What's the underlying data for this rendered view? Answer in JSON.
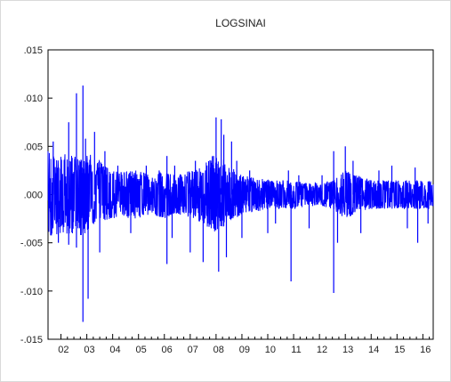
{
  "chart_data": {
    "type": "line",
    "title": "LOGSINAI",
    "xlabel": "",
    "ylabel": "",
    "x_tick_labels": [
      "02",
      "03",
      "04",
      "05",
      "06",
      "07",
      "08",
      "09",
      "10",
      "11",
      "12",
      "13",
      "14",
      "15",
      "16"
    ],
    "y_tick_labels": [
      ".015",
      ".010",
      ".005",
      ".000",
      "-.005",
      "-.010",
      "-.015"
    ],
    "y_ticks": [
      0.015,
      0.01,
      0.005,
      0.0,
      -0.005,
      -0.01,
      -0.015
    ],
    "xlim": [
      2001.5,
      2016.4
    ],
    "ylim": [
      -0.015,
      0.015
    ],
    "grid": false,
    "series": [
      {
        "color": "#0000ff",
        "envelope": {
          "x": [
            2001.5,
            2002.0,
            2002.5,
            2003.0,
            2003.5,
            2004.0,
            2004.5,
            2005.0,
            2005.5,
            2006.0,
            2006.5,
            2007.0,
            2007.5,
            2008.0,
            2008.5,
            2009.0,
            2009.5,
            2010.0,
            2010.5,
            2011.0,
            2011.5,
            2012.0,
            2012.5,
            2013.0,
            2013.5,
            2014.0,
            2014.5,
            2015.0,
            2015.5,
            2016.0,
            2016.4
          ],
          "upper": [
            0.005,
            0.0045,
            0.004,
            0.0045,
            0.0035,
            0.0025,
            0.0025,
            0.0025,
            0.002,
            0.0025,
            0.002,
            0.0025,
            0.003,
            0.0045,
            0.003,
            0.002,
            0.0018,
            0.0015,
            0.0015,
            0.0015,
            0.0012,
            0.0012,
            0.0015,
            0.0025,
            0.002,
            0.0015,
            0.0015,
            0.0015,
            0.0015,
            0.0015,
            0.0015
          ],
          "lower": [
            -0.0045,
            -0.004,
            -0.0045,
            -0.004,
            -0.003,
            -0.0025,
            -0.0025,
            -0.0025,
            -0.002,
            -0.0025,
            -0.002,
            -0.0025,
            -0.003,
            -0.004,
            -0.003,
            -0.002,
            -0.0018,
            -0.0015,
            -0.0015,
            -0.0015,
            -0.0012,
            -0.0012,
            -0.0015,
            -0.0025,
            -0.002,
            -0.0015,
            -0.0015,
            -0.0015,
            -0.0015,
            -0.0015,
            -0.0015
          ]
        },
        "spikes": [
          {
            "x": 2001.7,
            "y": 0.0055
          },
          {
            "x": 2001.9,
            "y": -0.005
          },
          {
            "x": 2002.3,
            "y": 0.0075
          },
          {
            "x": 2002.3,
            "y": -0.0052
          },
          {
            "x": 2002.6,
            "y": 0.0105
          },
          {
            "x": 2002.6,
            "y": -0.0055
          },
          {
            "x": 2002.85,
            "y": 0.0113
          },
          {
            "x": 2002.85,
            "y": -0.0132
          },
          {
            "x": 2002.95,
            "y": 0.0058
          },
          {
            "x": 2003.05,
            "y": -0.0108
          },
          {
            "x": 2003.3,
            "y": 0.0065
          },
          {
            "x": 2003.5,
            "y": -0.006
          },
          {
            "x": 2003.7,
            "y": 0.0045
          },
          {
            "x": 2004.2,
            "y": 0.003
          },
          {
            "x": 2004.7,
            "y": -0.004
          },
          {
            "x": 2005.3,
            "y": 0.003
          },
          {
            "x": 2005.8,
            "y": 0.0025
          },
          {
            "x": 2006.1,
            "y": 0.004
          },
          {
            "x": 2006.1,
            "y": -0.0072
          },
          {
            "x": 2006.3,
            "y": -0.0045
          },
          {
            "x": 2006.4,
            "y": 0.003
          },
          {
            "x": 2007.0,
            "y": -0.006
          },
          {
            "x": 2007.2,
            "y": 0.0035
          },
          {
            "x": 2007.5,
            "y": -0.007
          },
          {
            "x": 2007.9,
            "y": 0.004
          },
          {
            "x": 2008.0,
            "y": 0.008
          },
          {
            "x": 2008.1,
            "y": -0.008
          },
          {
            "x": 2008.2,
            "y": 0.0078
          },
          {
            "x": 2008.3,
            "y": 0.0062
          },
          {
            "x": 2008.4,
            "y": -0.0065
          },
          {
            "x": 2008.6,
            "y": 0.0055
          },
          {
            "x": 2008.8,
            "y": 0.0035
          },
          {
            "x": 2009.0,
            "y": -0.0045
          },
          {
            "x": 2009.3,
            "y": 0.0025
          },
          {
            "x": 2010.0,
            "y": -0.004
          },
          {
            "x": 2010.3,
            "y": -0.003
          },
          {
            "x": 2010.8,
            "y": 0.0025
          },
          {
            "x": 2010.9,
            "y": -0.009
          },
          {
            "x": 2011.2,
            "y": 0.002
          },
          {
            "x": 2011.6,
            "y": -0.0035
          },
          {
            "x": 2012.1,
            "y": 0.002
          },
          {
            "x": 2012.55,
            "y": 0.0045
          },
          {
            "x": 2012.55,
            "y": -0.0102
          },
          {
            "x": 2012.7,
            "y": -0.005
          },
          {
            "x": 2013.0,
            "y": 0.005
          },
          {
            "x": 2013.3,
            "y": 0.0035
          },
          {
            "x": 2013.6,
            "y": -0.004
          },
          {
            "x": 2014.3,
            "y": 0.0025
          },
          {
            "x": 2014.8,
            "y": 0.003
          },
          {
            "x": 2015.4,
            "y": -0.0035
          },
          {
            "x": 2015.7,
            "y": 0.0028
          },
          {
            "x": 2015.8,
            "y": -0.005
          },
          {
            "x": 2016.2,
            "y": -0.003
          }
        ]
      }
    ]
  }
}
